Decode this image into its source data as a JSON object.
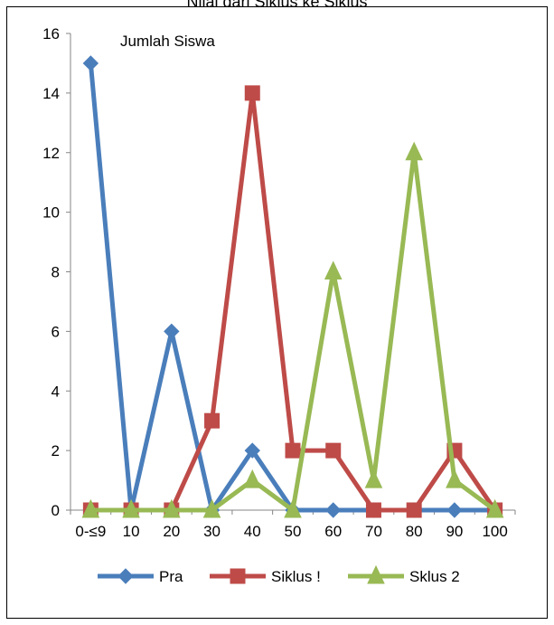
{
  "chart_data": {
    "type": "line",
    "title": "Nilai dari Siklus ke Siklus",
    "ylabel": "Jumlah Siswa",
    "xlabel": "",
    "categories": [
      "0-≤9",
      "10",
      "20",
      "30",
      "40",
      "50",
      "60",
      "70",
      "80",
      "90",
      "100"
    ],
    "ylim": [
      0,
      16
    ],
    "yticks": [
      0,
      2,
      4,
      6,
      8,
      10,
      12,
      14,
      16
    ],
    "grid": false,
    "legend_position": "bottom",
    "series": [
      {
        "name": "Pra",
        "color": "#4a7ebb",
        "marker": "diamond",
        "values": [
          15,
          0,
          6,
          0,
          2,
          0,
          0,
          0,
          0,
          0,
          0
        ]
      },
      {
        "name": "Siklus !",
        "color": "#be4b48",
        "marker": "square",
        "values": [
          0,
          0,
          0,
          3,
          14,
          2,
          2,
          0,
          0,
          2,
          0
        ]
      },
      {
        "name": "Sklus 2",
        "color": "#98b954",
        "marker": "triangle",
        "values": [
          0,
          0,
          0,
          0,
          1,
          0,
          8,
          1,
          12,
          1,
          0
        ]
      }
    ]
  }
}
